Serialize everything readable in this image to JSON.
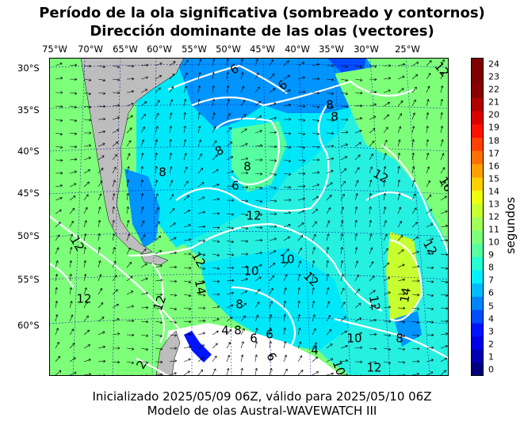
{
  "title": {
    "line1": "Período de la ola significativa (sombreado y contornos)",
    "line2": "Dirección dominante de las olas (vectores)"
  },
  "footer": {
    "line1": "Inicializado 2025/05/09 06Z, válido para 2025/05/10 06Z",
    "line2": "Modelo de olas Austral-WAVEWATCH III"
  },
  "axes": {
    "lon_ticks": [
      "75°W",
      "70°W",
      "65°W",
      "60°W",
      "55°W",
      "50°W",
      "45°W",
      "40°W",
      "35°W",
      "30°W",
      "25°W"
    ],
    "lat_ticks": [
      "30°S",
      "35°S",
      "40°S",
      "45°S",
      "50°S",
      "55°S",
      "60°S"
    ]
  },
  "colorbar": {
    "label": "segundos",
    "ticks": [
      "0",
      "1",
      "2",
      "3",
      "4",
      "5",
      "6",
      "7",
      "8",
      "9",
      "10",
      "11",
      "12",
      "13",
      "14",
      "15",
      "16",
      "17",
      "18",
      "19",
      "20",
      "21",
      "22",
      "23",
      "24"
    ],
    "colors": [
      "#00007f",
      "#0000b2",
      "#0000e8",
      "#0014ff",
      "#004cff",
      "#0084ff",
      "#00bcff",
      "#00f0ff",
      "#26ffd0",
      "#56ffa0",
      "#7dff7a",
      "#a0ff56",
      "#c7ff30",
      "#edff0a",
      "#ffd000",
      "#ffa000",
      "#ff7000",
      "#ff4000",
      "#ff1000",
      "#dc0000",
      "#b20000",
      "#8a0000",
      "#7f0000",
      "#7f0000"
    ]
  },
  "contour_labels": [
    "6",
    "6",
    "8",
    "8",
    "12",
    "12",
    "12",
    "8",
    "8",
    "8",
    "6",
    "12",
    "12",
    "10",
    "12",
    "12",
    "14",
    "12",
    "14",
    "12",
    "10",
    "8",
    "6",
    "4",
    "8",
    "6",
    "4",
    "2",
    "6",
    "10",
    "12",
    "12",
    "10",
    "16",
    "8"
  ]
}
